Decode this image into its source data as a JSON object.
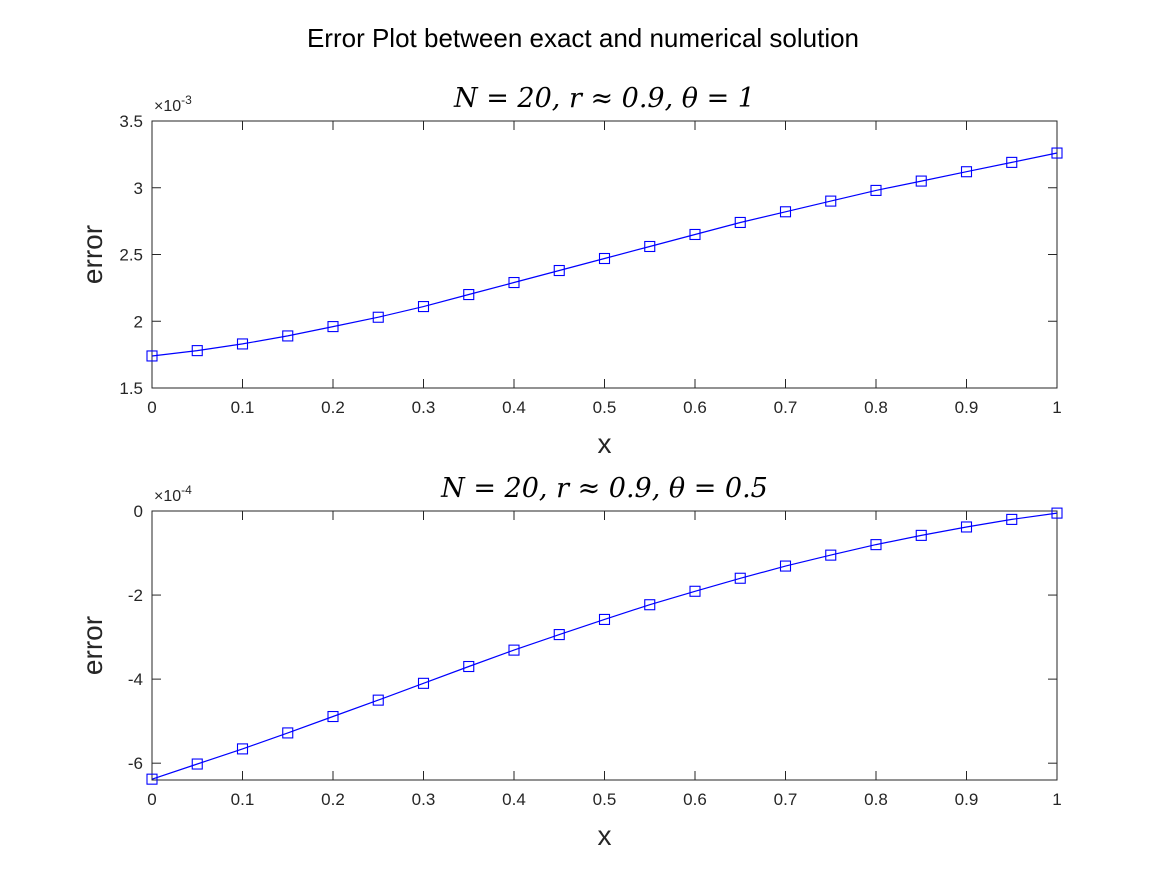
{
  "figure": {
    "title": "Error Plot between exact and numerical solution"
  },
  "chart_data": [
    {
      "type": "line",
      "title": "N = 20, r ≈ 0.9, θ = 1",
      "xlabel": "x",
      "ylabel": "error",
      "exponent_label": "×10",
      "exponent": "-3",
      "xlim": [
        0,
        1
      ],
      "ylim": [
        1.5,
        3.5
      ],
      "xticks": [
        0,
        0.1,
        0.2,
        0.3,
        0.4,
        0.5,
        0.6,
        0.7,
        0.8,
        0.9,
        1
      ],
      "xtick_labels": [
        "0",
        "0.1",
        "0.2",
        "0.3",
        "0.4",
        "0.5",
        "0.6",
        "0.7",
        "0.8",
        "0.9",
        "1"
      ],
      "yticks": [
        1.5,
        2,
        2.5,
        3,
        3.5
      ],
      "ytick_labels": [
        "1.5",
        "2",
        "2.5",
        "3",
        "3.5"
      ],
      "grid": false,
      "marker": "square",
      "color": "#0000ff",
      "x": [
        0,
        0.05,
        0.1,
        0.15,
        0.2,
        0.25,
        0.3,
        0.35,
        0.4,
        0.45,
        0.5,
        0.55,
        0.6,
        0.65,
        0.7,
        0.75,
        0.8,
        0.85,
        0.9,
        0.95,
        1
      ],
      "y": [
        1.74,
        1.78,
        1.83,
        1.89,
        1.96,
        2.03,
        2.11,
        2.2,
        2.29,
        2.38,
        2.47,
        2.56,
        2.65,
        2.74,
        2.82,
        2.9,
        2.98,
        3.05,
        3.12,
        3.19,
        3.26
      ]
    },
    {
      "type": "line",
      "title": "N = 20, r ≈ 0.9, θ = 0.5",
      "xlabel": "x",
      "ylabel": "error",
      "exponent_label": "×10",
      "exponent": "-4",
      "xlim": [
        0,
        1
      ],
      "ylim": [
        -6.4,
        0
      ],
      "xticks": [
        0,
        0.1,
        0.2,
        0.3,
        0.4,
        0.5,
        0.6,
        0.7,
        0.8,
        0.9,
        1
      ],
      "xtick_labels": [
        "0",
        "0.1",
        "0.2",
        "0.3",
        "0.4",
        "0.5",
        "0.6",
        "0.7",
        "0.8",
        "0.9",
        "1"
      ],
      "yticks": [
        -6,
        -4,
        -2,
        0
      ],
      "ytick_labels": [
        "-6",
        "-4",
        "-2",
        "0"
      ],
      "grid": false,
      "marker": "square",
      "color": "#0000ff",
      "x": [
        0,
        0.05,
        0.1,
        0.15,
        0.2,
        0.25,
        0.3,
        0.35,
        0.4,
        0.45,
        0.5,
        0.55,
        0.6,
        0.65,
        0.7,
        0.75,
        0.8,
        0.85,
        0.9,
        0.95,
        1
      ],
      "y": [
        -6.38,
        -6.02,
        -5.66,
        -5.28,
        -4.89,
        -4.5,
        -4.1,
        -3.7,
        -3.31,
        -2.94,
        -2.58,
        -2.23,
        -1.91,
        -1.6,
        -1.31,
        -1.05,
        -0.8,
        -0.58,
        -0.38,
        -0.2,
        -0.05
      ]
    }
  ]
}
